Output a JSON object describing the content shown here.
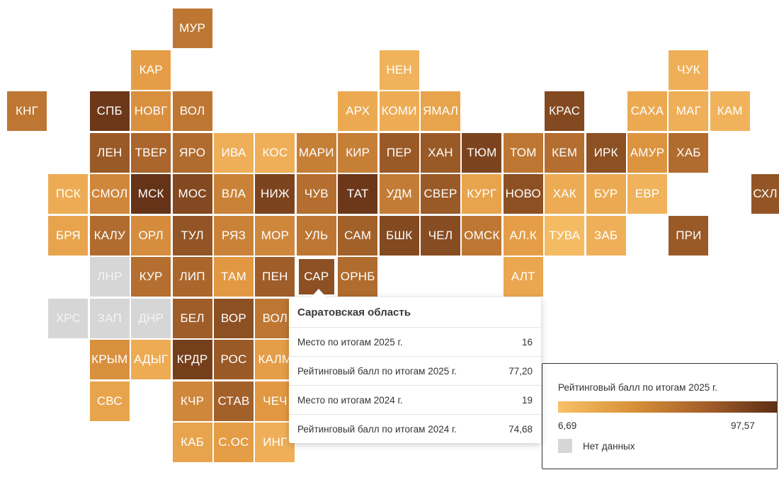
{
  "colors": {
    "min": "#f6bb60",
    "max": "#5c2d16",
    "nodata": "#d6d6d6"
  },
  "regions": [
    {
      "label": "МУР",
      "col": 4,
      "row": 0,
      "level": 0.55
    },
    {
      "label": "КАР",
      "col": 3,
      "row": 1,
      "level": 0.3
    },
    {
      "label": "НЕН",
      "col": 9,
      "row": 1,
      "level": 0.12
    },
    {
      "label": "ЧУК",
      "col": 16,
      "row": 1,
      "level": 0.15
    },
    {
      "label": "КНГ",
      "col": 0,
      "row": 2,
      "level": 0.55
    },
    {
      "label": "СПБ",
      "col": 2,
      "row": 2,
      "level": 0.92
    },
    {
      "label": "НОВГ",
      "col": 3,
      "row": 2,
      "level": 0.4
    },
    {
      "label": "ВОЛ",
      "col": 4,
      "row": 2,
      "level": 0.55
    },
    {
      "label": "АРХ",
      "col": 8,
      "row": 2,
      "level": 0.2
    },
    {
      "label": "КОМИ",
      "col": 9,
      "row": 2,
      "level": 0.18
    },
    {
      "label": "ЯМАЛ",
      "col": 10,
      "row": 2,
      "level": 0.25
    },
    {
      "label": "КРАС",
      "col": 13,
      "row": 2,
      "level": 0.82
    },
    {
      "label": "САХА",
      "col": 15,
      "row": 2,
      "level": 0.2
    },
    {
      "label": "МАГ",
      "col": 16,
      "row": 2,
      "level": 0.15
    },
    {
      "label": "КАМ",
      "col": 17,
      "row": 2,
      "level": 0.12
    },
    {
      "label": "ЛЕН",
      "col": 2,
      "row": 3,
      "level": 0.72
    },
    {
      "label": "ТВЕР",
      "col": 3,
      "row": 3,
      "level": 0.65
    },
    {
      "label": "ЯРО",
      "col": 4,
      "row": 3,
      "level": 0.62
    },
    {
      "label": "ИВА",
      "col": 5,
      "row": 3,
      "level": 0.15
    },
    {
      "label": "КОС",
      "col": 6,
      "row": 3,
      "level": 0.15
    },
    {
      "label": "МАРИ",
      "col": 7,
      "row": 3,
      "level": 0.5
    },
    {
      "label": "КИР",
      "col": 8,
      "row": 3,
      "level": 0.5
    },
    {
      "label": "ПЕР",
      "col": 9,
      "row": 3,
      "level": 0.72
    },
    {
      "label": "ХАН",
      "col": 10,
      "row": 3,
      "level": 0.72
    },
    {
      "label": "ТЮМ",
      "col": 11,
      "row": 3,
      "level": 0.85
    },
    {
      "label": "ТОМ",
      "col": 12,
      "row": 3,
      "level": 0.55
    },
    {
      "label": "КЕМ",
      "col": 13,
      "row": 3,
      "level": 0.6
    },
    {
      "label": "ИРК",
      "col": 14,
      "row": 3,
      "level": 0.78
    },
    {
      "label": "АМУР",
      "col": 15,
      "row": 3,
      "level": 0.38
    },
    {
      "label": "ХАБ",
      "col": 16,
      "row": 3,
      "level": 0.62
    },
    {
      "label": "ПСК",
      "col": 1,
      "row": 4,
      "level": 0.18
    },
    {
      "label": "СМОЛ",
      "col": 2,
      "row": 4,
      "level": 0.45
    },
    {
      "label": "МСК",
      "col": 3,
      "row": 4,
      "level": 0.95
    },
    {
      "label": "МОС",
      "col": 4,
      "row": 4,
      "level": 0.82
    },
    {
      "label": "ВЛА",
      "col": 5,
      "row": 4,
      "level": 0.48
    },
    {
      "label": "НИЖ",
      "col": 6,
      "row": 4,
      "level": 0.85
    },
    {
      "label": "ЧУВ",
      "col": 7,
      "row": 4,
      "level": 0.6
    },
    {
      "label": "ТАТ",
      "col": 8,
      "row": 4,
      "level": 0.92
    },
    {
      "label": "УДМ",
      "col": 9,
      "row": 4,
      "level": 0.52
    },
    {
      "label": "СВЕР",
      "col": 10,
      "row": 4,
      "level": 0.72
    },
    {
      "label": "КУРГ",
      "col": 11,
      "row": 4,
      "level": 0.25
    },
    {
      "label": "НОВО",
      "col": 12,
      "row": 4,
      "level": 0.78
    },
    {
      "label": "ХАК",
      "col": 13,
      "row": 4,
      "level": 0.18
    },
    {
      "label": "БУР",
      "col": 14,
      "row": 4,
      "level": 0.2
    },
    {
      "label": "ЕВР",
      "col": 15,
      "row": 4,
      "level": 0.12
    },
    {
      "label": "СХЛ",
      "col": 18,
      "row": 4,
      "level": 0.75
    },
    {
      "label": "БРЯ",
      "col": 1,
      "row": 5,
      "level": 0.25
    },
    {
      "label": "КАЛУ",
      "col": 2,
      "row": 5,
      "level": 0.62
    },
    {
      "label": "ОРЛ",
      "col": 3,
      "row": 5,
      "level": 0.42
    },
    {
      "label": "ТУЛ",
      "col": 4,
      "row": 5,
      "level": 0.75
    },
    {
      "label": "РЯЗ",
      "col": 5,
      "row": 5,
      "level": 0.48
    },
    {
      "label": "МОР",
      "col": 6,
      "row": 5,
      "level": 0.45
    },
    {
      "label": "УЛЬ",
      "col": 7,
      "row": 5,
      "level": 0.55
    },
    {
      "label": "САМ",
      "col": 8,
      "row": 5,
      "level": 0.68
    },
    {
      "label": "БШК",
      "col": 9,
      "row": 5,
      "level": 0.82
    },
    {
      "label": "ЧЕЛ",
      "col": 10,
      "row": 5,
      "level": 0.8
    },
    {
      "label": "ОМСК",
      "col": 11,
      "row": 5,
      "level": 0.55
    },
    {
      "label": "АЛ.К",
      "col": 12,
      "row": 5,
      "level": 0.3
    },
    {
      "label": "ТУВА",
      "col": 13,
      "row": 5,
      "level": 0.05
    },
    {
      "label": "ЗАБ",
      "col": 14,
      "row": 5,
      "level": 0.15
    },
    {
      "label": "ПРИ",
      "col": 16,
      "row": 5,
      "level": 0.72
    },
    {
      "label": "ЛНР",
      "col": 2,
      "row": 6,
      "nodata": true
    },
    {
      "label": "КУР",
      "col": 3,
      "row": 6,
      "level": 0.6
    },
    {
      "label": "ЛИП",
      "col": 4,
      "row": 6,
      "level": 0.65
    },
    {
      "label": "ТАМ",
      "col": 5,
      "row": 6,
      "level": 0.35
    },
    {
      "label": "ПЕН",
      "col": 6,
      "row": 6,
      "level": 0.7
    },
    {
      "label": "САР",
      "col": 7,
      "row": 6,
      "level": 0.78,
      "active": true
    },
    {
      "label": "ОРНБ",
      "col": 8,
      "row": 6,
      "level": 0.62
    },
    {
      "label": "АЛТ",
      "col": 12,
      "row": 6,
      "level": 0.22
    },
    {
      "label": "ХРС",
      "col": 1,
      "row": 7,
      "nodata": true
    },
    {
      "label": "ЗАП",
      "col": 2,
      "row": 7,
      "nodata": true
    },
    {
      "label": "ДНР",
      "col": 3,
      "row": 7,
      "nodata": true
    },
    {
      "label": "БЕЛ",
      "col": 4,
      "row": 7,
      "level": 0.7
    },
    {
      "label": "ВОР",
      "col": 5,
      "row": 7,
      "level": 0.78
    },
    {
      "label": "ВОЛ",
      "col": 6,
      "row": 7,
      "level": 0.55
    },
    {
      "label": "КРЫМ",
      "col": 2,
      "row": 8,
      "level": 0.4
    },
    {
      "label": "АДЫГ",
      "col": 3,
      "row": 8,
      "level": 0.18
    },
    {
      "label": "КРДР",
      "col": 4,
      "row": 8,
      "level": 0.88
    },
    {
      "label": "РОС",
      "col": 5,
      "row": 8,
      "level": 0.72
    },
    {
      "label": "КАЛМ",
      "col": 6,
      "row": 8,
      "level": 0.3
    },
    {
      "label": "СВС",
      "col": 2,
      "row": 9,
      "level": 0.25
    },
    {
      "label": "КЧР",
      "col": 4,
      "row": 9,
      "level": 0.45
    },
    {
      "label": "СТАВ",
      "col": 5,
      "row": 9,
      "level": 0.68
    },
    {
      "label": "ЧЕЧ",
      "col": 6,
      "row": 9,
      "level": 0.35
    },
    {
      "label": "КАБ",
      "col": 4,
      "row": 10,
      "level": 0.25
    },
    {
      "label": "С.ОС",
      "col": 5,
      "row": 10,
      "level": 0.32
    },
    {
      "label": "ИНГ",
      "col": 6,
      "row": 10,
      "level": 0.15
    }
  ],
  "tooltip": {
    "title": "Саратовская область",
    "rows": [
      {
        "label": "Место по итогам 2025 г.",
        "value": "16"
      },
      {
        "label": "Рейтинговый балл по итогам 2025 г.",
        "value": "77,20"
      },
      {
        "label": "Место по итогам 2024 г.",
        "value": "19"
      },
      {
        "label": "Рейтинговый балл по итогам 2024 г.",
        "value": "74,68"
      }
    ]
  },
  "legend": {
    "title": "Рейтинговый балл по итогам 2025 г.",
    "min_label": "6,69",
    "max_label": "97,57",
    "nodata_label": "Нет данных"
  }
}
